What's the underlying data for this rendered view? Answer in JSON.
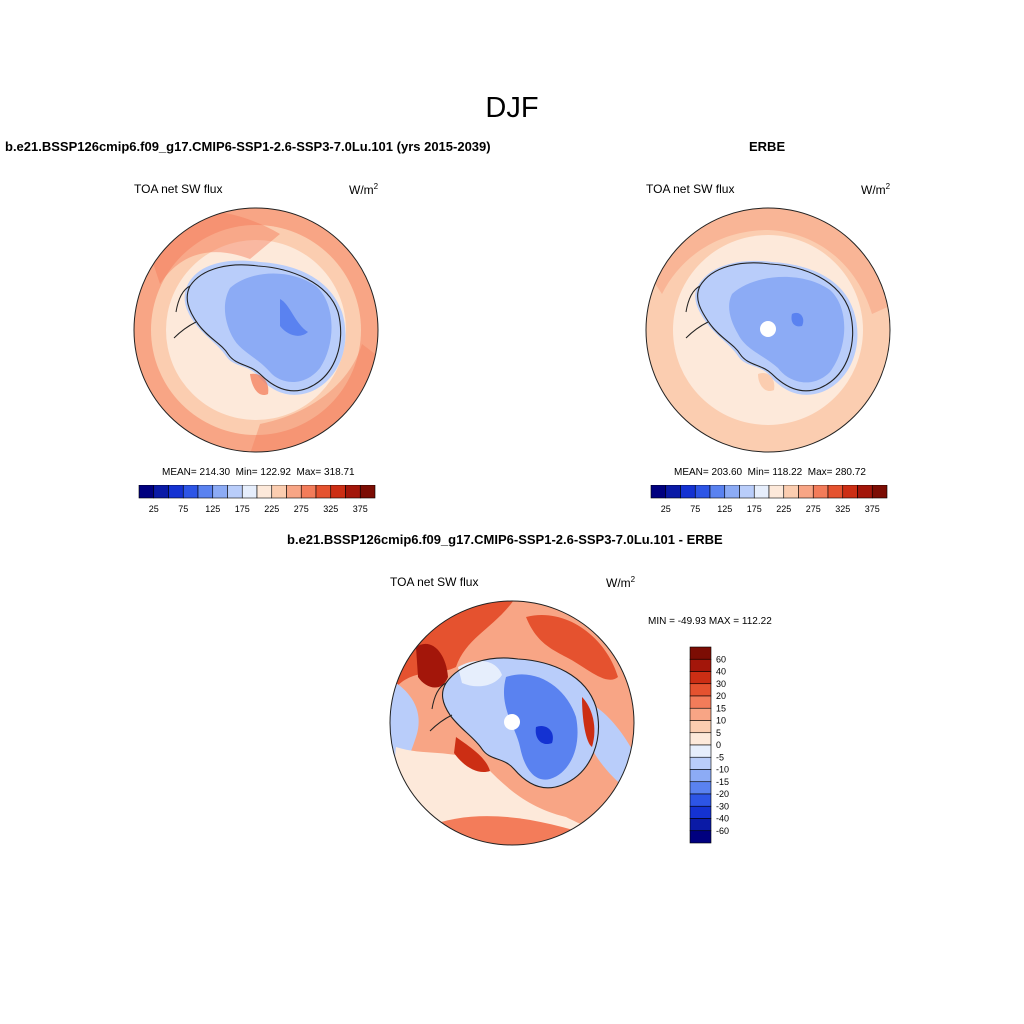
{
  "figure": {
    "title": "DJF"
  },
  "panels": [
    {
      "case_title": "b.e21.BSSP126cmip6.f09_g17.CMIP6-SSP1-2.6-SSP3-7.0Lu.101 (yrs 2015-2039)",
      "variable": "TOA net SW flux",
      "units": "W/m",
      "units_sup": "2",
      "stats": "MEAN= 214.30  Min= 122.92  Max= 318.71"
    },
    {
      "case_title": "ERBE",
      "variable": "TOA net SW flux",
      "units": "W/m",
      "units_sup": "2",
      "stats": "MEAN= 203.60  Min= 118.22  Max= 280.72"
    },
    {
      "case_title": "b.e21.BSSP126cmip6.f09_g17.CMIP6-SSP1-2.6-SSP3-7.0Lu.101 - ERBE",
      "variable": "TOA net SW flux",
      "units": "W/m",
      "units_sup": "2",
      "stats": "MIN = -49.93 MAX = 112.22"
    }
  ],
  "colorbar_abs": {
    "tick_labels": [
      "25",
      "75",
      "125",
      "175",
      "225",
      "275",
      "325",
      "375"
    ],
    "colors": [
      "#00007f",
      "#0a1aa6",
      "#1432d2",
      "#2d55e6",
      "#5a82f0",
      "#8cabf5",
      "#b9cdfa",
      "#e6eefc",
      "#fde9da",
      "#fbcdb0",
      "#f8a585",
      "#f37c5a",
      "#e5522f",
      "#cc2e14",
      "#a3160a",
      "#7c0d04"
    ]
  },
  "colorbar_diff": {
    "tick_labels": [
      "60",
      "40",
      "30",
      "20",
      "15",
      "10",
      "5",
      "0",
      "-5",
      "-10",
      "-15",
      "-20",
      "-30",
      "-40",
      "-60"
    ],
    "colors": [
      "#7c0d04",
      "#a3160a",
      "#cc2e14",
      "#e5522f",
      "#f37c5a",
      "#f8a585",
      "#fbcdb0",
      "#fde9da",
      "#e6eefc",
      "#b9cdfa",
      "#8cabf5",
      "#5a82f0",
      "#2d55e6",
      "#1432d2",
      "#0a1aa6",
      "#00007f"
    ]
  }
}
